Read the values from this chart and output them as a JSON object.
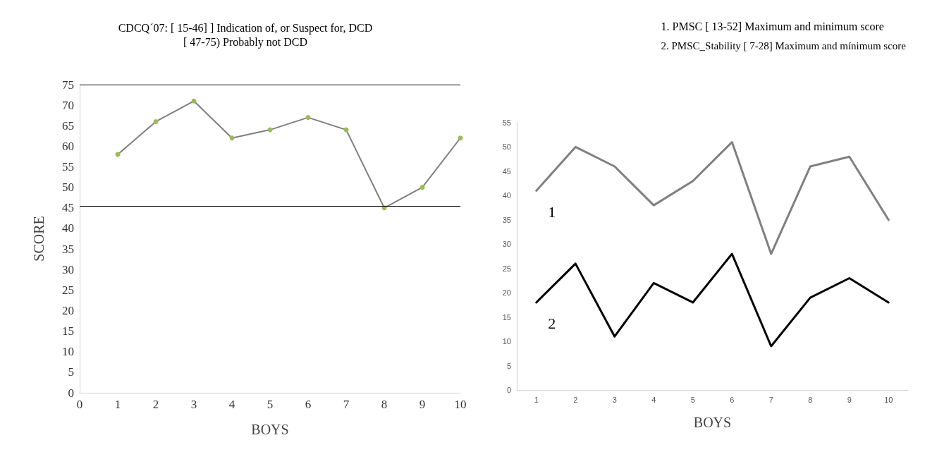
{
  "chart_data": [
    {
      "type": "line",
      "title": "CDCQ´07: [ 15-46] ] Indication of, or Suspect for, DCD",
      "subtitle": "[ 47-75) Probably not DCD",
      "xlabel": "BOYS",
      "ylabel": "SCORE",
      "x": [
        1,
        2,
        3,
        4,
        5,
        6,
        7,
        8,
        9,
        10
      ],
      "series": [
        {
          "color": "#9bbb59",
          "values": [
            58,
            66,
            71,
            62,
            64,
            67,
            64,
            45,
            50,
            62
          ]
        }
      ],
      "xlim": [
        0,
        10
      ],
      "xticks": [
        0,
        1,
        2,
        3,
        4,
        5,
        6,
        7,
        8,
        9,
        10
      ],
      "ylim": [
        0,
        75
      ],
      "yticks": [
        0,
        5,
        10,
        15,
        20,
        25,
        30,
        35,
        40,
        45,
        50,
        55,
        60,
        65,
        70,
        75
      ],
      "ref_lines": [
        {
          "axis": "y",
          "value": 75,
          "color": "#000000"
        },
        {
          "axis": "y",
          "value": 45.5,
          "color": "#000000"
        }
      ],
      "marker": "circle",
      "grid": false
    },
    {
      "type": "line",
      "title": "1. PMSC [ 13-52] Maximum and minimum score",
      "subtitle": "2. PMSC_Stability [ 7-28] Maximum and mínimum score",
      "xlabel": "BOYS",
      "categories": [
        "1",
        "2",
        "3",
        "4",
        "5",
        "6",
        "7",
        "8",
        "9",
        "10"
      ],
      "series": [
        {
          "name": "1",
          "color": "#808080",
          "values": [
            41,
            50,
            46,
            38,
            43,
            51,
            28,
            46,
            48,
            35
          ]
        },
        {
          "name": "2",
          "color": "#000000",
          "values": [
            18,
            26,
            11,
            22,
            18,
            28,
            9,
            19,
            23,
            18
          ]
        }
      ],
      "ylim": [
        0,
        55
      ],
      "yticks": [
        0,
        5,
        10,
        15,
        20,
        25,
        30,
        35,
        40,
        45,
        50,
        55
      ],
      "marker": "none",
      "grid": false
    }
  ]
}
